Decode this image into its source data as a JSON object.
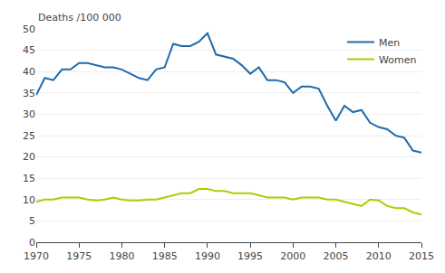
{
  "chart_data": {
    "type": "line",
    "ylabel": "Deaths /100 000",
    "x": [
      1970,
      1971,
      1972,
      1973,
      1974,
      1975,
      1976,
      1977,
      1978,
      1979,
      1980,
      1981,
      1982,
      1983,
      1984,
      1985,
      1986,
      1987,
      1988,
      1989,
      1990,
      1991,
      1992,
      1993,
      1994,
      1995,
      1996,
      1997,
      1998,
      1999,
      2000,
      2001,
      2002,
      2003,
      2004,
      2005,
      2006,
      2007,
      2008,
      2009,
      2010,
      2011,
      2012,
      2013,
      2014,
      2015
    ],
    "series": [
      {
        "name": "Men",
        "color": "#1f6aad",
        "values": [
          34.5,
          38.5,
          38.0,
          40.5,
          40.5,
          42.0,
          42.0,
          41.5,
          41.0,
          41.0,
          40.5,
          39.5,
          38.5,
          38.0,
          40.5,
          41.0,
          46.5,
          46.0,
          46.0,
          47.0,
          49.0,
          44.0,
          43.5,
          43.0,
          41.5,
          39.5,
          41.0,
          38.0,
          38.0,
          37.5,
          35.0,
          36.5,
          36.5,
          36.0,
          32.0,
          28.5,
          32.0,
          30.5,
          31.0,
          28.0,
          27.0,
          26.5,
          25.0,
          24.5,
          21.5,
          21.0
        ]
      },
      {
        "name": "Women",
        "color": "#b5c800",
        "values": [
          9.5,
          10.0,
          10.0,
          10.5,
          10.5,
          10.5,
          10.0,
          9.8,
          10.0,
          10.5,
          10.0,
          9.8,
          9.8,
          10.0,
          10.0,
          10.5,
          11.0,
          11.5,
          11.5,
          12.5,
          12.5,
          12.0,
          12.0,
          11.5,
          11.5,
          11.5,
          11.0,
          10.5,
          10.5,
          10.5,
          10.0,
          10.5,
          10.5,
          10.5,
          10.0,
          10.0,
          9.5,
          9.0,
          8.5,
          10.0,
          9.8,
          8.5,
          8.0,
          8.0,
          7.0,
          6.5
        ]
      }
    ],
    "xlim": [
      1970,
      2015
    ],
    "xticks": [
      1970,
      1975,
      1980,
      1985,
      1990,
      1995,
      2000,
      2005,
      2010,
      2015
    ],
    "ylim": [
      0,
      50
    ],
    "yticks": [
      0,
      5,
      10,
      15,
      20,
      25,
      30,
      35,
      40,
      45,
      50
    ],
    "grid": true,
    "legend": "upper right"
  }
}
